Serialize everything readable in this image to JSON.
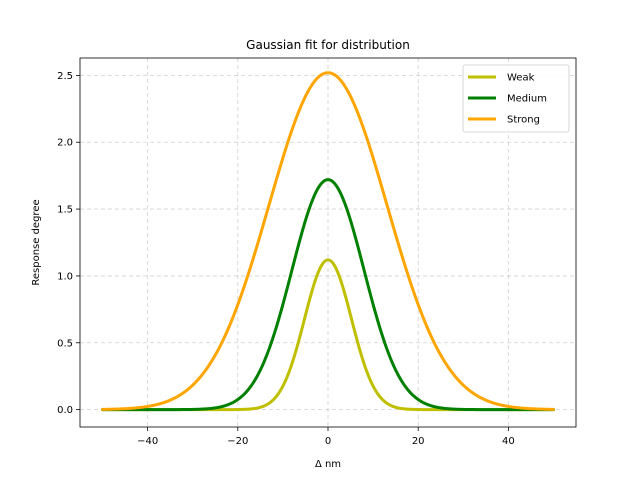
{
  "chart_data": {
    "type": "line",
    "title": "Gaussian fit for distribution",
    "xlabel": "Δ nm",
    "ylabel": "Response degree",
    "xlim": [
      -55,
      55
    ],
    "ylim": [
      -0.13,
      2.63
    ],
    "xticks": [
      -40,
      -20,
      0,
      20,
      40
    ],
    "xtick_labels": [
      "−40",
      "−20",
      "0",
      "20",
      "40"
    ],
    "yticks": [
      0.0,
      0.5,
      1.0,
      1.5,
      2.0,
      2.5
    ],
    "ytick_labels": [
      "0.0",
      "0.5",
      "1.0",
      "1.5",
      "2.0",
      "2.5"
    ],
    "grid": true,
    "legend_position": "top-right",
    "x_range": [
      -50,
      50
    ],
    "series": [
      {
        "name": "Weak",
        "color": "#bfbf00",
        "amplitude": 1.12,
        "mean": 0,
        "sigma": 5.2
      },
      {
        "name": "Medium",
        "color": "#008000",
        "amplitude": 1.72,
        "mean": 0,
        "sigma": 8.0
      },
      {
        "name": "Strong",
        "color": "#ffa500",
        "amplitude": 2.52,
        "mean": 0,
        "sigma": 13.1
      }
    ]
  }
}
